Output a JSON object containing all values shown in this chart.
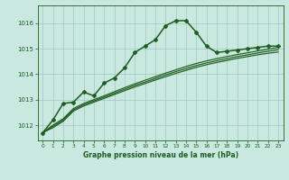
{
  "title": "Graphe pression niveau de la mer (hPa)",
  "bg_color": "#c8e8e0",
  "grid_color": "#a0c8c0",
  "line_color": "#1e5c1e",
  "x_ticks": [
    0,
    1,
    2,
    3,
    4,
    5,
    6,
    7,
    8,
    9,
    10,
    11,
    12,
    13,
    14,
    15,
    16,
    17,
    18,
    19,
    20,
    21,
    22,
    23
  ],
  "y_ticks": [
    1012,
    1013,
    1014,
    1015,
    1016
  ],
  "ylim": [
    1011.4,
    1016.7
  ],
  "xlim": [
    -0.5,
    23.5
  ],
  "series_main": {
    "x": [
      0,
      1,
      2,
      3,
      4,
      5,
      6,
      7,
      8,
      9,
      10,
      11,
      12,
      13,
      14,
      15,
      16,
      17,
      18,
      19,
      20,
      21,
      22,
      23
    ],
    "y": [
      1011.7,
      1012.2,
      1012.85,
      1012.9,
      1013.3,
      1013.15,
      1013.65,
      1013.85,
      1014.25,
      1014.85,
      1015.1,
      1015.35,
      1015.9,
      1016.1,
      1016.1,
      1015.65,
      1015.1,
      1014.85,
      1014.9,
      1014.95,
      1015.0,
      1015.05,
      1015.1,
      1015.1
    ],
    "marker": "P",
    "markersize": 3.0,
    "linewidth": 1.1
  },
  "series_linear": [
    [
      1011.7,
      1011.9,
      1012.15,
      1012.55,
      1012.75,
      1012.9,
      1013.05,
      1013.2,
      1013.35,
      1013.5,
      1013.63,
      1013.77,
      1013.9,
      1014.03,
      1014.15,
      1014.27,
      1014.37,
      1014.46,
      1014.54,
      1014.62,
      1014.69,
      1014.76,
      1014.82,
      1014.87
    ],
    [
      1011.7,
      1011.95,
      1012.2,
      1012.6,
      1012.8,
      1012.95,
      1013.1,
      1013.25,
      1013.41,
      1013.56,
      1013.69,
      1013.83,
      1013.97,
      1014.1,
      1014.22,
      1014.34,
      1014.44,
      1014.53,
      1014.61,
      1014.69,
      1014.76,
      1014.83,
      1014.9,
      1014.96
    ],
    [
      1011.7,
      1012.0,
      1012.25,
      1012.65,
      1012.85,
      1013.0,
      1013.15,
      1013.31,
      1013.47,
      1013.62,
      1013.76,
      1013.9,
      1014.04,
      1014.17,
      1014.3,
      1014.42,
      1014.52,
      1014.61,
      1014.69,
      1014.77,
      1014.84,
      1014.91,
      1014.98,
      1015.05
    ]
  ],
  "linear_linewidth": 0.85
}
